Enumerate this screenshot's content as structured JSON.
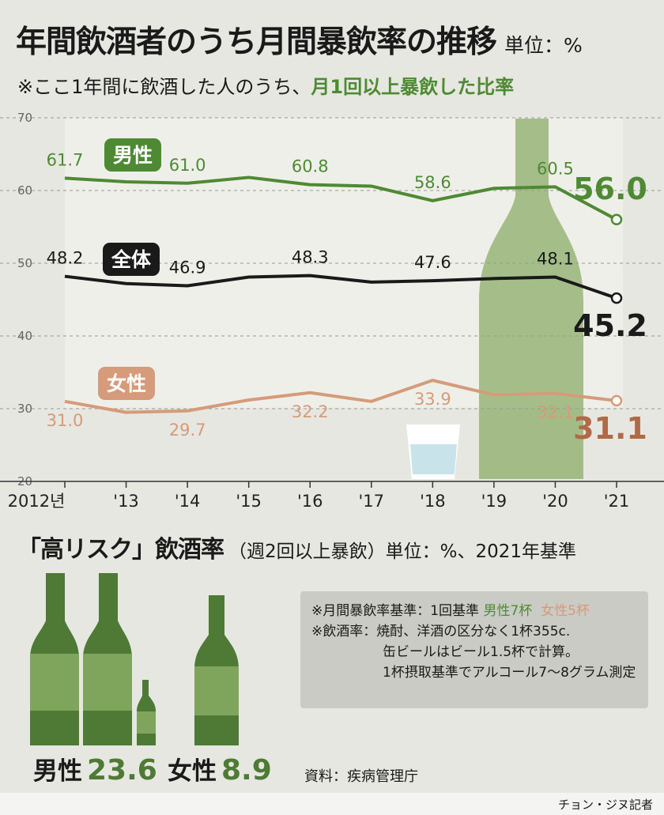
{
  "title": "年間飲酒者のうち月間暴飲率の推移",
  "unit": "単位：%",
  "subtitle_prefix": "※ここ1年間に飲酒した人のうち、",
  "subtitle_highlight": "月1回以上暴飲した比率",
  "chart_data": {
    "type": "line",
    "categories": [
      "2012년",
      "'13",
      "'14",
      "'15",
      "'16",
      "'17",
      "'18",
      "'19",
      "'20",
      "'21"
    ],
    "ylim": [
      20,
      70
    ],
    "yticks": [
      "20",
      "30",
      "40",
      "50",
      "60",
      "70"
    ],
    "grid": true,
    "series": [
      {
        "name": "男性",
        "values": [
          61.7,
          61.2,
          61.0,
          61.8,
          60.8,
          60.6,
          58.6,
          60.3,
          60.5,
          56.0
        ],
        "labels": [
          "61.7",
          "",
          "61.0",
          "",
          "60.8",
          "",
          "58.6",
          "",
          "60.5",
          "56.0"
        ],
        "color": "#4e8a33"
      },
      {
        "name": "全体",
        "values": [
          48.2,
          47.2,
          46.9,
          48.1,
          48.3,
          47.4,
          47.6,
          47.9,
          48.1,
          45.2
        ],
        "labels": [
          "48.2",
          "",
          "46.9",
          "",
          "48.3",
          "",
          "47.6",
          "",
          "48.1",
          "45.2"
        ],
        "color": "#1a1a1a"
      },
      {
        "name": "女性",
        "values": [
          31.0,
          29.5,
          29.7,
          31.2,
          32.2,
          31.0,
          33.9,
          31.9,
          32.1,
          31.1
        ],
        "labels": [
          "31.0",
          "",
          "29.7",
          "",
          "32.2",
          "",
          "33.9",
          "",
          "32.1",
          "31.1"
        ],
        "color": "#d59b7a"
      }
    ]
  },
  "section2_title": "「高リスク」飲酒率",
  "section2_note": "（週2回以上暴飲）単位：%、2021年基準",
  "high_risk": {
    "male_label": "男性",
    "male_value": "23.6",
    "female_label": "女性",
    "female_value": "8.9"
  },
  "notes": {
    "l1_prefix": "※月間暴飲率基準：1回基準",
    "l1_male": "男性7杯",
    "l1_female": "女性5杯",
    "l2": "※飲酒率：焼酎、洋酒の区分なく1杯355c.",
    "l3": "缶ビールはビール1.5杯で計算。",
    "l4": "1杯摂取基準でアルコール7～8グラム測定"
  },
  "source": "資料：疾病管理庁",
  "credit": "チョン・ジヌ記者",
  "colors": {
    "male": "#4e8a33",
    "female": "#d59b7a",
    "total": "#1a1a1a"
  }
}
